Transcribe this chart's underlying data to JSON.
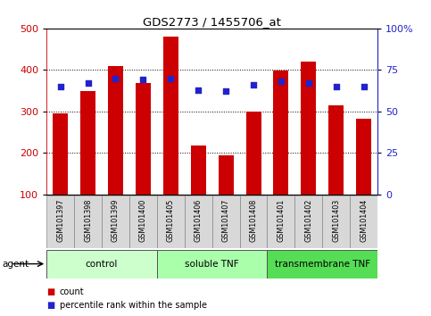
{
  "title": "GDS2773 / 1455706_at",
  "samples": [
    "GSM101397",
    "GSM101398",
    "GSM101399",
    "GSM101400",
    "GSM101405",
    "GSM101406",
    "GSM101407",
    "GSM101408",
    "GSM101401",
    "GSM101402",
    "GSM101403",
    "GSM101404"
  ],
  "bar_values": [
    295,
    348,
    410,
    368,
    480,
    218,
    193,
    300,
    398,
    420,
    315,
    282
  ],
  "percentile_values": [
    65,
    67,
    70,
    69,
    70,
    63,
    62,
    66,
    68,
    67,
    65,
    65
  ],
  "bar_color": "#cc0000",
  "dot_color": "#2222cc",
  "ylim_left": [
    100,
    500
  ],
  "ylim_right": [
    0,
    100
  ],
  "yticks_left": [
    100,
    200,
    300,
    400,
    500
  ],
  "yticks_right": [
    0,
    25,
    50,
    75,
    100
  ],
  "ytick_labels_right": [
    "0",
    "25",
    "50",
    "75",
    "100%"
  ],
  "gridlines": [
    200,
    300,
    400
  ],
  "groups": [
    {
      "label": "control",
      "start": 0,
      "end": 4,
      "color": "#ccffcc"
    },
    {
      "label": "soluble TNF",
      "start": 4,
      "end": 8,
      "color": "#aaffaa"
    },
    {
      "label": "transmembrane TNF",
      "start": 8,
      "end": 12,
      "color": "#55dd55"
    }
  ],
  "agent_label": "agent",
  "legend_count_label": "count",
  "legend_pct_label": "percentile rank within the sample",
  "bar_color_hex": "#cc0000",
  "dot_color_hex": "#2222cc",
  "left_tick_color": "#cc0000",
  "right_tick_color": "#2222cc",
  "tick_label_bg": "#d8d8d8",
  "bar_bottom": 100,
  "bar_width": 0.55
}
